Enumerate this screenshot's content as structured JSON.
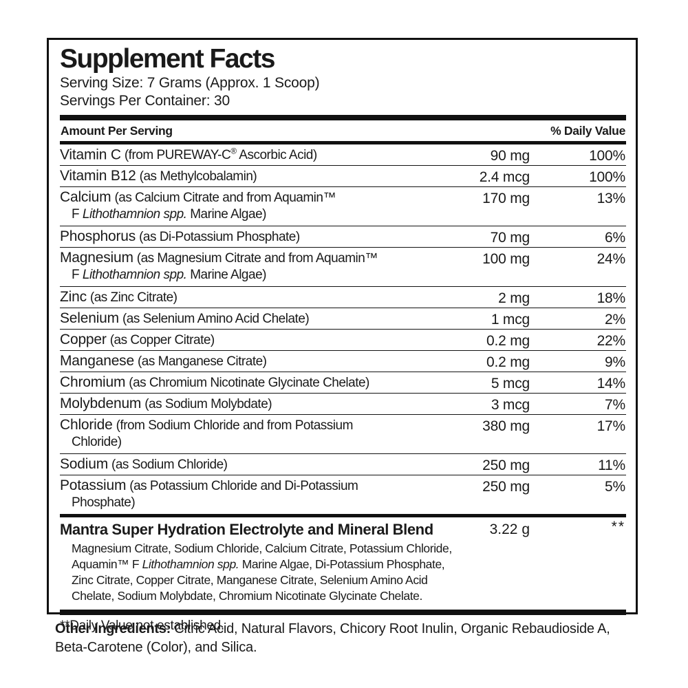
{
  "label": {
    "title": "Supplement Facts",
    "serving_size": "Serving Size: 7 Grams (Approx. 1 Scoop)",
    "servings_per_container": "Servings Per Container: 30",
    "columns": {
      "amount_header": "Amount Per Serving",
      "dv_header": "% Daily Value"
    },
    "rows": [
      {
        "name": "Vitamin C",
        "detail_pre": "(from PUREWAY-C",
        "detail_sup": "®",
        "detail_post": " Ascorbic Acid)",
        "amount": "90 mg",
        "dv": "100%"
      },
      {
        "name": "Vitamin B12",
        "detail": "(as Methylcobalamin)",
        "amount": "2.4 mcg",
        "dv": "100%"
      },
      {
        "name": "Calcium",
        "detail": "(as Calcium Citrate and from Aquamin™",
        "line2": {
          "pre": "F ",
          "italic": "Lithothamnion spp.",
          "post": " Marine Algae)"
        },
        "amount": "170 mg",
        "dv": "13%"
      },
      {
        "name": "Phosphorus",
        "detail": "(as Di-Potassium Phosphate)",
        "amount": "70 mg",
        "dv": "6%"
      },
      {
        "name": "Magnesium",
        "detail": "(as Magnesium Citrate and from Aquamin™",
        "line2": {
          "pre": "F ",
          "italic": "Lithothamnion spp.",
          "post": " Marine Algae)"
        },
        "amount": "100 mg",
        "dv": "24%"
      },
      {
        "name": "Zinc",
        "detail": "(as Zinc Citrate)",
        "amount": "2 mg",
        "dv": "18%"
      },
      {
        "name": "Selenium",
        "detail": "(as Selenium Amino Acid Chelate)",
        "amount": "1 mcg",
        "dv": "2%"
      },
      {
        "name": "Copper",
        "detail": "(as Copper Citrate)",
        "amount": "0.2 mg",
        "dv": "22%"
      },
      {
        "name": "Manganese",
        "detail": "(as Manganese Citrate)",
        "amount": "0.2 mg",
        "dv": "9%"
      },
      {
        "name": "Chromium",
        "detail": "(as Chromium Nicotinate Glycinate Chelate)",
        "amount": "5 mcg",
        "dv": "14%"
      },
      {
        "name": "Molybdenum",
        "detail": "(as Sodium Molybdate)",
        "amount": "3 mcg",
        "dv": "7%"
      },
      {
        "name": "Chloride",
        "detail": "(from Sodium Chloride and from Potassium",
        "line2": {
          "pre": "Chloride)"
        },
        "amount": "380 mg",
        "dv": "17%"
      },
      {
        "name": "Sodium",
        "detail": "(as Sodium Chloride)",
        "amount": "250 mg",
        "dv": "11%"
      },
      {
        "name": "Potassium",
        "detail": "(as Potassium Chloride and Di-Potassium",
        "line2": {
          "pre": "Phosphate)"
        },
        "amount": "250 mg",
        "dv": "5%"
      }
    ],
    "blend": {
      "name": "Mantra Super Hydration Electrolyte and Mineral Blend",
      "amount": "3.22 g",
      "dv": "**",
      "lines": [
        {
          "pre": "Magnesium Citrate, Sodium Chloride, Calcium Citrate, Potassium Chloride,"
        },
        {
          "pre": "Aquamin™ F ",
          "italic": "Lithothamnion spp.",
          "post": " Marine Algae, Di-Potassium Phosphate,"
        },
        {
          "pre": "Zinc Citrate, Copper Citrate, Manganese Citrate, Selenium Amino Acid"
        },
        {
          "pre": "Chelate, Sodium Molybdate, Chromium Nicotinate Glycinate Chelate."
        }
      ]
    },
    "footnote": "**Daily Value not established.",
    "other_ingredients": {
      "label": "Other Ingredients:",
      "text": " Citric Acid, Natural Flavors, Chicory Root Inulin, Organic Rebaudioside A, Beta-Carotene (Color), and Silica."
    },
    "colors": {
      "ink": "#1a1a1a",
      "background": "#ffffff"
    }
  }
}
